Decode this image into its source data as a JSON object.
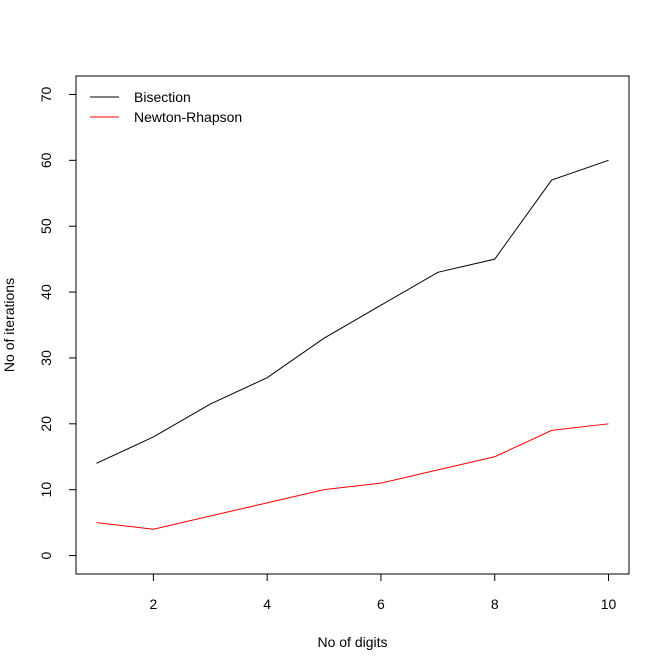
{
  "chart_data": {
    "type": "line",
    "title": "",
    "xlabel": "No of digits",
    "ylabel": "No of iterations",
    "xlim": [
      0.64,
      10.36
    ],
    "ylim": [
      -2.8,
      72.8
    ],
    "x_ticks": [
      2,
      4,
      6,
      8,
      10
    ],
    "y_ticks": [
      0,
      10,
      20,
      30,
      40,
      50,
      60,
      70
    ],
    "grid": false,
    "legend_position": "top-left",
    "x": [
      1,
      2,
      3,
      4,
      5,
      6,
      7,
      8,
      9,
      10
    ],
    "series": [
      {
        "name": "Bisection",
        "color": "#000000",
        "values": [
          14,
          18,
          23,
          27,
          33,
          38,
          43,
          45,
          57,
          60
        ]
      },
      {
        "name": "Newton-Rhapson",
        "color": "#ff0000",
        "values": [
          5,
          4,
          6,
          8,
          10,
          11,
          13,
          15,
          19,
          20
        ]
      }
    ]
  }
}
